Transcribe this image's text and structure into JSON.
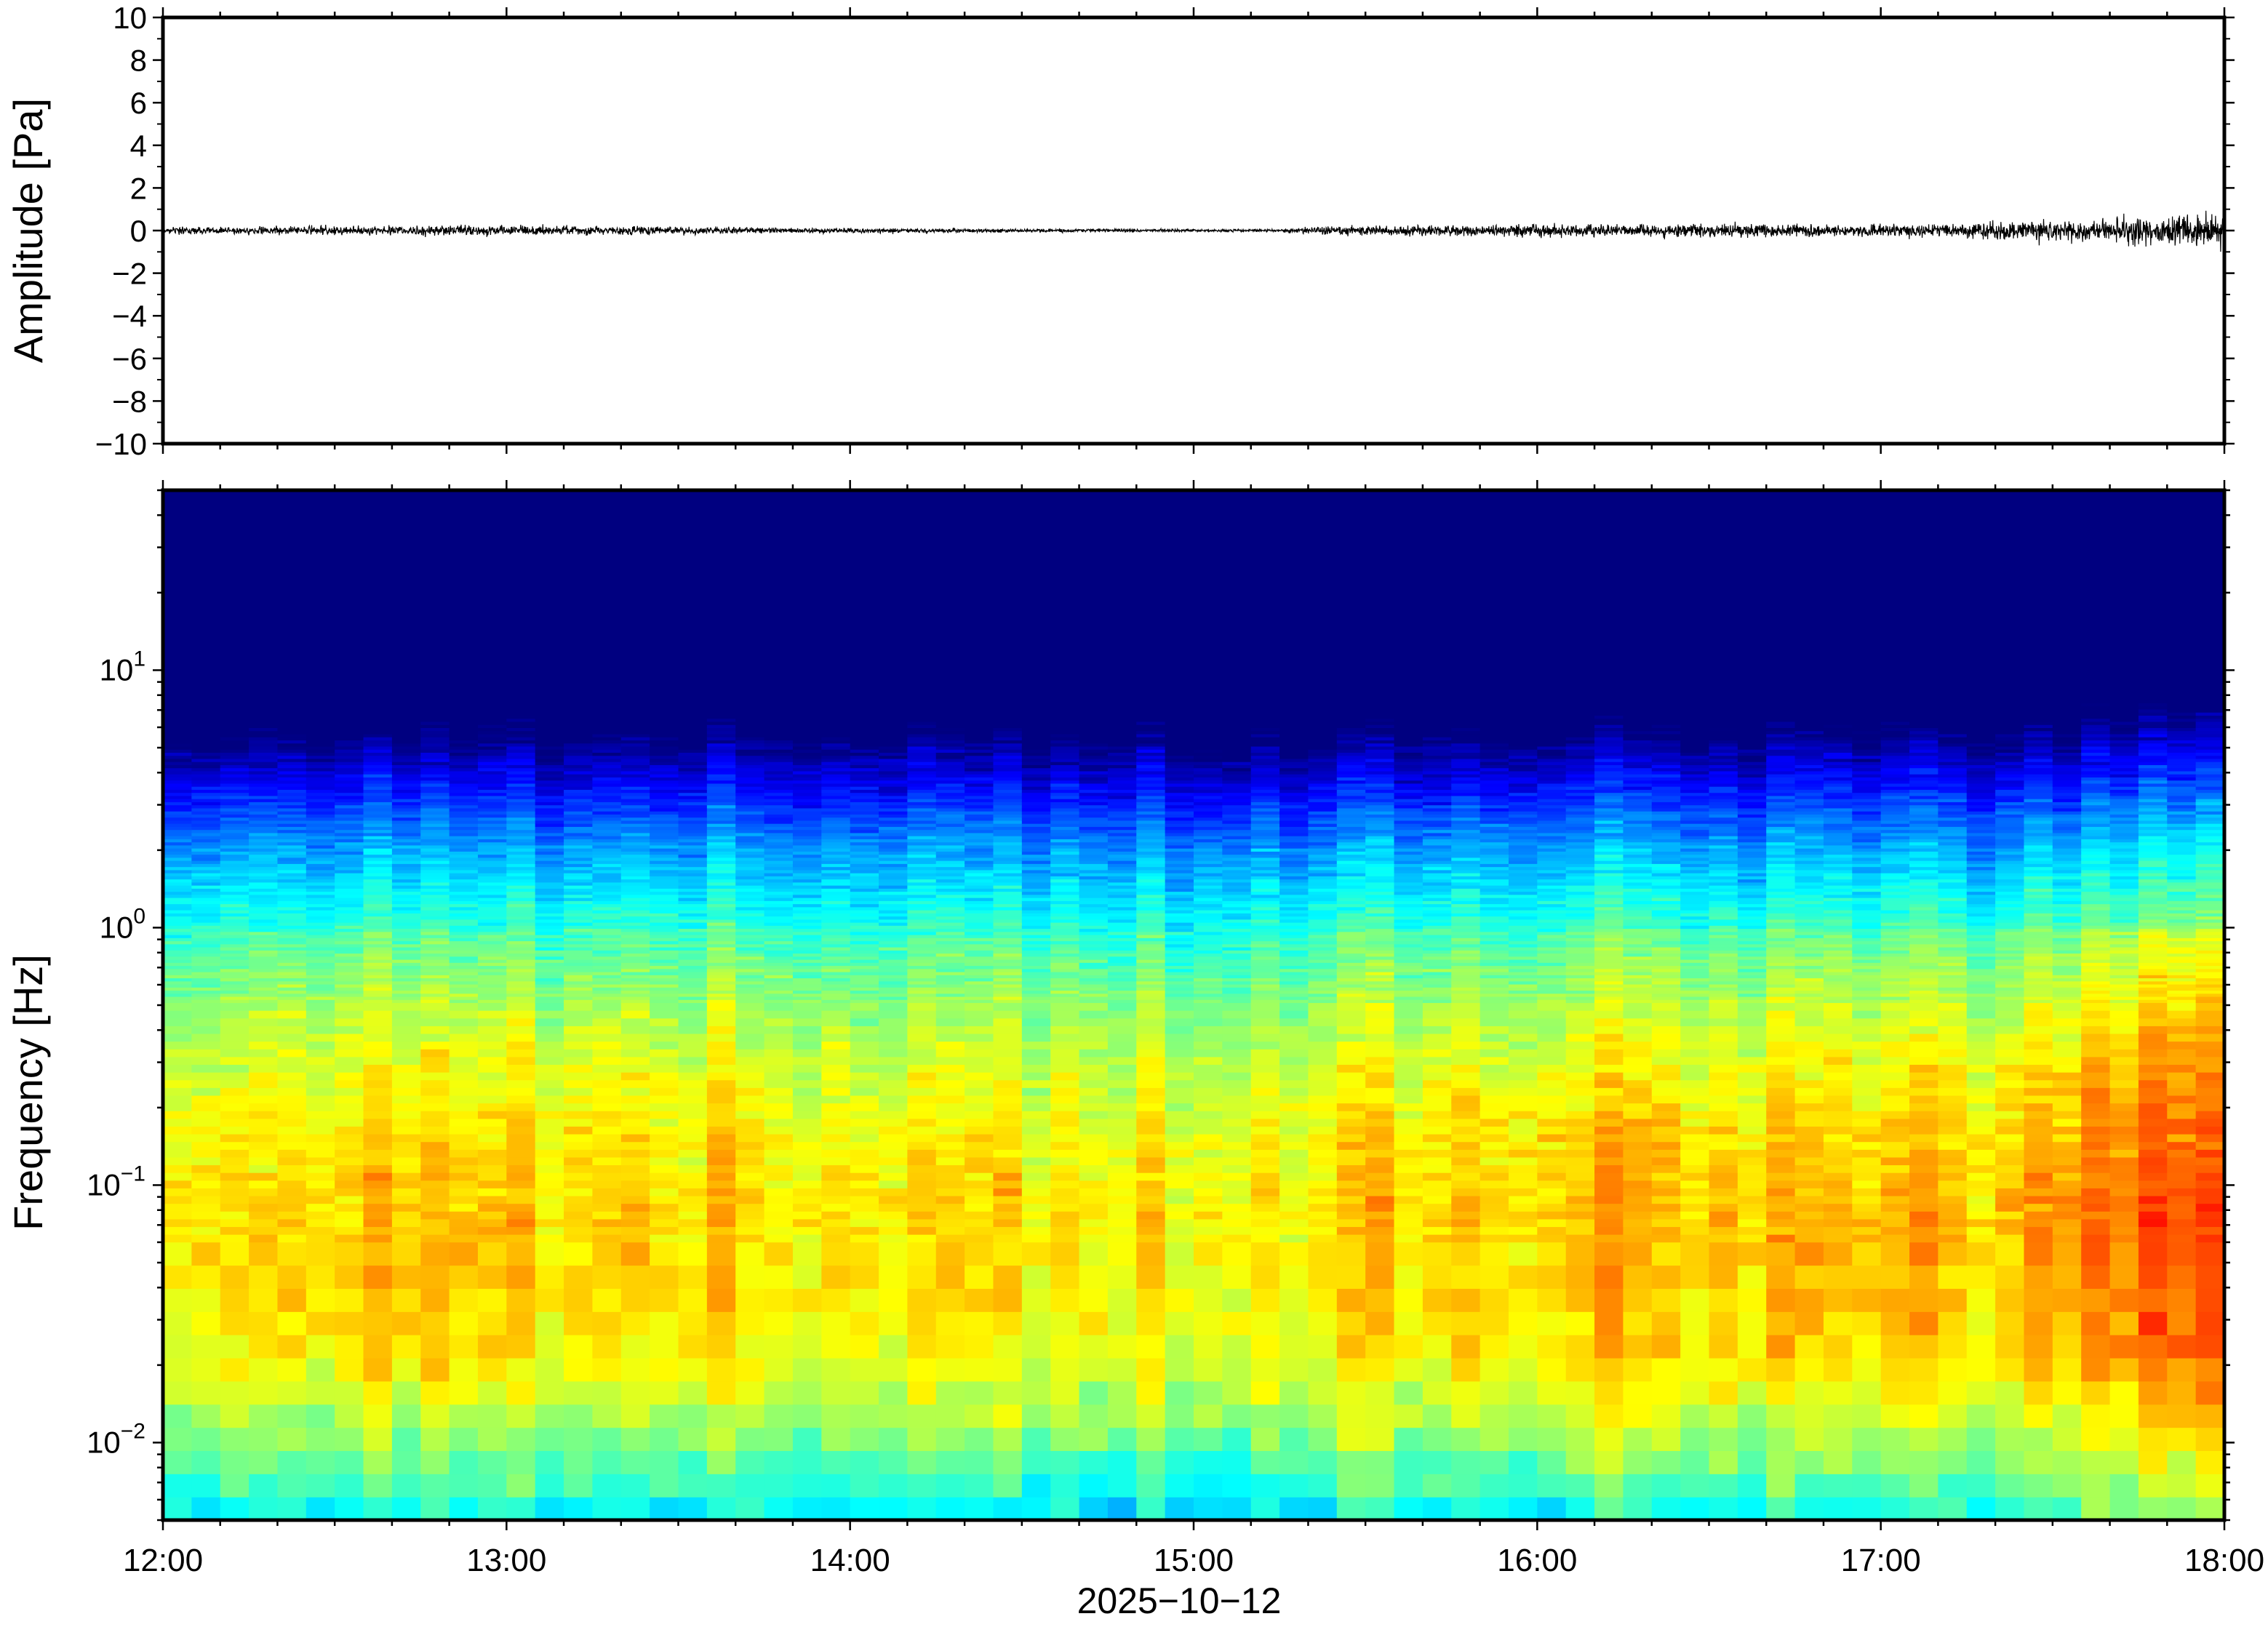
{
  "chart_data": [
    {
      "type": "line",
      "panel": "waveform",
      "ylabel": "Amplitude [Pa]",
      "ylim": [
        -10,
        10
      ],
      "yticks": [
        10,
        8,
        6,
        4,
        2,
        0,
        -2,
        -4,
        -6,
        -8,
        -10
      ],
      "ytick_labels": [
        "10",
        "8",
        "6",
        "4",
        "2",
        "0",
        "−2",
        "−4",
        "−6",
        "−8",
        "−10"
      ],
      "x_hours": [
        12,
        18
      ],
      "envelope": {
        "hours": [
          12.0,
          12.5,
          13.0,
          13.5,
          14.0,
          14.5,
          15.0,
          15.25,
          15.35,
          16.0,
          16.5,
          17.0,
          17.5,
          17.75,
          18.0
        ],
        "amplitude_pa": [
          0.25,
          0.35,
          0.4,
          0.3,
          0.2,
          0.15,
          0.12,
          0.1,
          0.35,
          0.5,
          0.55,
          0.5,
          0.8,
          1.1,
          1.3
        ]
      },
      "grid": false,
      "series_color": "#000000"
    },
    {
      "type": "heatmap",
      "panel": "spectrogram",
      "ylabel": "Frequency [Hz]",
      "y_scale": "log",
      "ylim_hz": [
        0.005,
        50
      ],
      "yticks": [
        {
          "base": "10",
          "exp": "1",
          "value": 10
        },
        {
          "base": "10",
          "exp": "0",
          "value": 1
        },
        {
          "base": "10",
          "exp": "−1",
          "value": 0.1
        },
        {
          "base": "10",
          "exp": "−2",
          "value": 0.01
        }
      ],
      "colormap": "jet",
      "x_hours": [
        12,
        18
      ],
      "x_tick_labels": [
        "12:00",
        "13:00",
        "14:00",
        "15:00",
        "16:00",
        "17:00",
        "18:00"
      ],
      "xlabel": "2025−10−12",
      "grid": false
    }
  ]
}
